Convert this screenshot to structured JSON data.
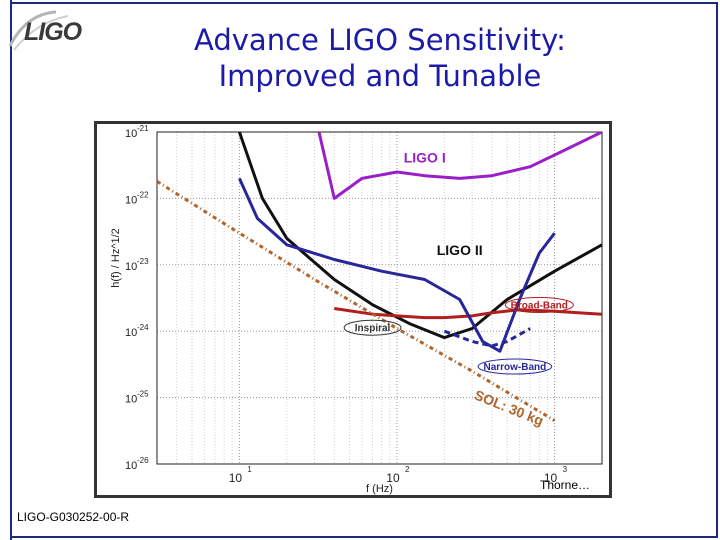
{
  "header": {
    "logo": "LIGO",
    "title_line1": "Advance LIGO Sensitivity:",
    "title_line2": "Improved and Tunable"
  },
  "figure": {
    "caption": "Thorne…"
  },
  "footer": {
    "doc_id": "LIGO-G030252-00-R"
  },
  "colors": {
    "title": "#1b1ba8",
    "ligo1": "#9b1fc8",
    "ligo2": "#111111",
    "broadband": "#b01e1e",
    "narrowband": "#27279a",
    "sol": "#b0642a",
    "border": "#1b2a7a"
  },
  "chart_data": {
    "type": "line",
    "xscale": "log",
    "yscale": "log",
    "xlim": [
      3,
      2000
    ],
    "ylim": [
      1e-26,
      1e-21
    ],
    "xlabel": "f (Hz)",
    "ylabel": "h(f) / Hz^1/2",
    "x_ticks": [
      {
        "base": "10",
        "exp": "1",
        "value": 10
      },
      {
        "base": "10",
        "exp": "2",
        "value": 100
      },
      {
        "base": "10",
        "exp": "3",
        "value": 1000
      }
    ],
    "y_ticks": [
      {
        "base": "10",
        "exp": "-21",
        "value": 1e-21
      },
      {
        "base": "10",
        "exp": "-22",
        "value": 1e-22
      },
      {
        "base": "10",
        "exp": "-23",
        "value": 1e-23
      },
      {
        "base": "10",
        "exp": "-24",
        "value": 1e-24
      },
      {
        "base": "10",
        "exp": "-25",
        "value": 1e-25
      },
      {
        "base": "10",
        "exp": "-26",
        "value": 1e-26
      }
    ],
    "series": [
      {
        "name": "LIGO I",
        "key": "ligo1",
        "style": "solid",
        "x": [
          32,
          40,
          60,
          100,
          150,
          250,
          400,
          700,
          1000,
          2000
        ],
        "y": [
          1e-21,
          1e-22,
          2e-22,
          2.5e-22,
          2.2e-22,
          2e-22,
          2.2e-22,
          3e-22,
          4.5e-22,
          1e-21
        ]
      },
      {
        "name": "LIGO II",
        "key": "ligo2",
        "style": "solid",
        "x": [
          10,
          14,
          20,
          40,
          70,
          120,
          200,
          300,
          500,
          1000,
          2000
        ],
        "y": [
          1e-21,
          1e-22,
          2.5e-23,
          6e-24,
          2.5e-24,
          1.3e-24,
          8e-25,
          1.1e-24,
          3e-24,
          8e-24,
          2e-23
        ]
      },
      {
        "name": "Broad-Band",
        "key": "broadband",
        "style": "solid",
        "x": [
          40,
          70,
          100,
          150,
          200,
          300,
          400,
          600,
          1000,
          2000
        ],
        "y": [
          2.2e-24,
          1.8e-24,
          1.7e-24,
          1.6e-24,
          1.6e-24,
          1.7e-24,
          1.9e-24,
          2.1e-24,
          2e-24,
          1.8e-24
        ]
      },
      {
        "name": "Narrow-Band",
        "key": "narrowband",
        "style": "solid",
        "x": [
          10,
          13,
          20,
          40,
          80,
          150,
          250,
          350,
          450,
          600,
          800,
          1000
        ],
        "y": [
          2e-22,
          5e-23,
          2e-23,
          1.2e-23,
          8e-24,
          6e-24,
          3e-24,
          7e-25,
          5e-25,
          3e-24,
          1.5e-23,
          3e-23
        ]
      },
      {
        "name": "Narrow-Band detuned",
        "key": "narrowband",
        "style": "dashed",
        "x": [
          200,
          300,
          400,
          500,
          700
        ],
        "y": [
          1e-24,
          7e-25,
          6e-25,
          7e-25,
          1.1e-24
        ]
      },
      {
        "name": "SOL: 30 kg",
        "key": "sol",
        "style": "dashdot",
        "x": [
          3,
          10,
          30,
          100,
          300,
          1000
        ],
        "y": [
          1.8e-22,
          3e-23,
          6e-24,
          1.1e-24,
          2.5e-25,
          4.5e-26
        ]
      }
    ],
    "labels": {
      "ligo1": "LIGO I",
      "ligo2": "LIGO II",
      "broadband": "Broad-Band",
      "narrowband": "Narrow-Band",
      "inspiral": "Inspiral",
      "sol": "SOL: 30 kg"
    }
  }
}
